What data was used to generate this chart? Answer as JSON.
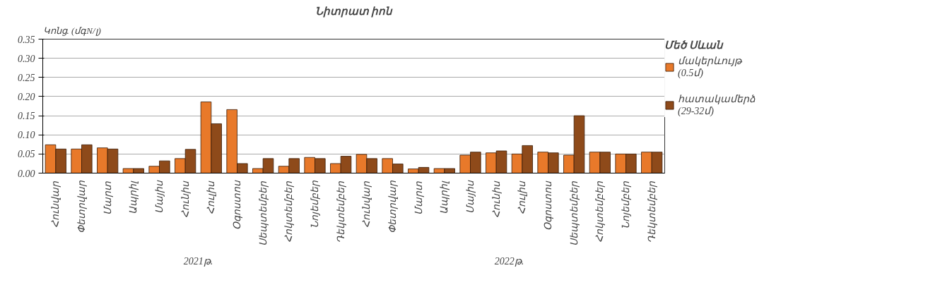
{
  "chart_data": {
    "type": "bar",
    "title": "Նիտրատ իոն",
    "ylabel": "Կոնց. (մգN/լ)",
    "legend_title": "Մեծ Սևան",
    "categories": [
      "Հունվար",
      "Փետրվար",
      "Մարտ",
      "Ապրիլ",
      "Մայիս",
      "Հունիս",
      "Հուլիս",
      "Օգոստոս",
      "Սեպտեմբեր",
      "Հոկտեմբեր",
      "Նոյեմբեր",
      "Դեկտեմբեր",
      "Հունվար",
      "Փետրվար",
      "Մարտ",
      "Ապրիլ",
      "Մայիս",
      "Հունիս",
      "Հուլիս",
      "Օգոստոս",
      "Սեպտեմբեր",
      "Հոկտեմբեր",
      "Նոյեմբեր",
      "Դեկտեմբեր"
    ],
    "series": [
      {
        "name": "մակերևույթ (0.5մ)",
        "color": "#e8792a",
        "values": [
          0.074,
          0.063,
          0.066,
          0.012,
          0.018,
          0.038,
          0.186,
          0.166,
          0.012,
          0.018,
          0.041,
          0.025,
          0.049,
          0.038,
          0.011,
          0.012,
          0.047,
          0.053,
          0.05,
          0.055,
          0.047,
          0.055,
          0.05,
          0.055
        ]
      },
      {
        "name": "հատակամերձ (29-32մ)",
        "color": "#8e4a1a",
        "values": [
          0.063,
          0.074,
          0.063,
          0.012,
          0.032,
          0.062,
          0.129,
          0.025,
          0.038,
          0.038,
          0.038,
          0.044,
          0.038,
          0.024,
          0.015,
          0.012,
          0.055,
          0.058,
          0.072,
          0.053,
          0.15,
          0.055,
          0.05,
          0.055
        ]
      }
    ],
    "annotations": [
      "2021թ.",
      "2022թ."
    ],
    "ylim": [
      0,
      0.35
    ],
    "yticks": [
      {
        "value": 0,
        "label": "0.00"
      },
      {
        "value": 0.05,
        "label": "0.05"
      },
      {
        "value": 0.1,
        "label": "0.10"
      },
      {
        "value": 0.15,
        "label": "0.15"
      },
      {
        "value": 0.2,
        "label": "0.20"
      },
      {
        "value": 0.25,
        "label": "0.25"
      },
      {
        "value": 0.3,
        "label": "0.30"
      },
      {
        "value": 0.35,
        "label": "0.35"
      }
    ],
    "grid": "y",
    "legend": "right"
  }
}
